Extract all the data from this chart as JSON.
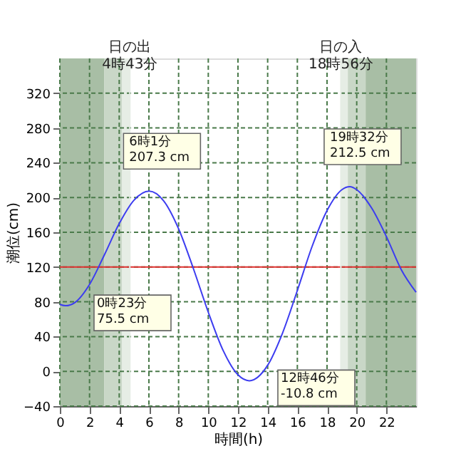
{
  "chart_data": {
    "type": "line",
    "xlabel": "時間(h)",
    "ylabel": "潮位(cm)",
    "xlim": [
      0,
      24
    ],
    "ylim": [
      -40,
      360
    ],
    "xticks": [
      0,
      2,
      4,
      6,
      8,
      10,
      12,
      14,
      16,
      18,
      20,
      22
    ],
    "yticks": [
      -40,
      0,
      40,
      80,
      120,
      160,
      200,
      240,
      280,
      320
    ],
    "grid": true,
    "marker": "none",
    "line_style": "solid",
    "series": [
      {
        "color": "#3c3cf0",
        "x": [
          0,
          0.383,
          1,
          2,
          3,
          4,
          5,
          6.017,
          7,
          8,
          9,
          10,
          11,
          12,
          12.767,
          14,
          15,
          16,
          17,
          18,
          19,
          19.533,
          20,
          21,
          22,
          23,
          24
        ],
        "values": [
          77,
          75.5,
          79,
          100,
          134,
          170,
          197,
          207.3,
          196,
          164,
          118,
          68,
          24,
          -4,
          -10.8,
          7,
          44,
          93,
          144,
          185,
          209,
          212.5,
          209,
          188,
          155,
          117,
          91
        ]
      }
    ],
    "ref_lines": [
      {
        "axis": "y",
        "value": 120,
        "color": "#e03030",
        "line_style": "solid"
      },
      {
        "axis": "x",
        "value": 4.717,
        "label": "日の出\n4時43分",
        "color": "#e6ede5",
        "line_style": "solid"
      },
      {
        "axis": "x",
        "value": 18.933,
        "label": "日の入\n18時56分",
        "color": "#e6ede5",
        "line_style": "solid"
      }
    ],
    "bands": [
      {
        "axis": "x",
        "from": 0,
        "to": 3,
        "color": "#a8bea5"
      },
      {
        "axis": "x",
        "from": 3,
        "to": 4.2,
        "color": "#c9d7c7"
      },
      {
        "axis": "x",
        "from": 4.2,
        "to": 4.717,
        "color": "#e6ede5"
      },
      {
        "axis": "x",
        "from": 18.933,
        "to": 19.4,
        "color": "#e6ede5"
      },
      {
        "axis": "x",
        "from": 19.4,
        "to": 20.6,
        "color": "#c9d7c7"
      },
      {
        "axis": "x",
        "from": 20.6,
        "to": 24,
        "color": "#a8bea5"
      }
    ],
    "annotations": [
      {
        "text": "0時23分\n75.5 cm",
        "x": 0.383,
        "y": 75.5
      },
      {
        "text": "6時1分\n207.3 cm",
        "x": 6.017,
        "y": 207.3
      },
      {
        "text": "12時46分\n-10.8 cm",
        "x": 12.767,
        "y": -10.8
      },
      {
        "text": "19時32分\n212.5 cm",
        "x": 19.533,
        "y": 212.5
      }
    ]
  }
}
